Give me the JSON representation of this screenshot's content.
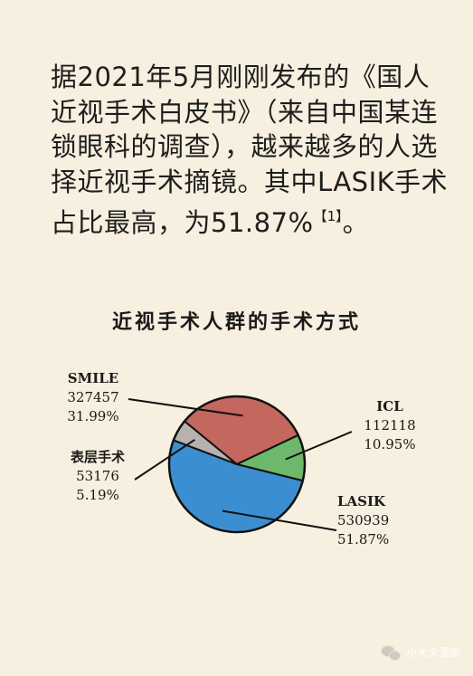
{
  "paragraph": {
    "main_text": "据2021年5月刚刚发布的《国人近视手术白皮书》（来自中国某连锁眼科的调查），越来越多的人选择近视手术摘镜。其中LASIK手术占比最高，为51.87%",
    "ref_mark": "【1】",
    "tail": "。"
  },
  "chart_data": {
    "type": "pie",
    "title": "近视手术人群的手术方式",
    "slices": [
      {
        "name": "LASIK",
        "count": "530939",
        "percent_label": "51.87%",
        "value": 51.87,
        "color": "#3b8fd0"
      },
      {
        "name": "表层手术",
        "count": "53176",
        "percent_label": "5.19%",
        "value": 5.19,
        "color": "#b9b0b0"
      },
      {
        "name": "SMILE",
        "count": "327457",
        "percent_label": "31.99%",
        "value": 31.99,
        "color": "#c4675f"
      },
      {
        "name": "ICL",
        "count": "112118",
        "percent_label": "10.95%",
        "value": 10.95,
        "color": "#6db86b"
      }
    ],
    "start_angle_deg": 14,
    "direction": "clockwise",
    "legend": "none"
  },
  "footer": {
    "text": "小大夫漫画",
    "icon": "wechat-icon"
  }
}
